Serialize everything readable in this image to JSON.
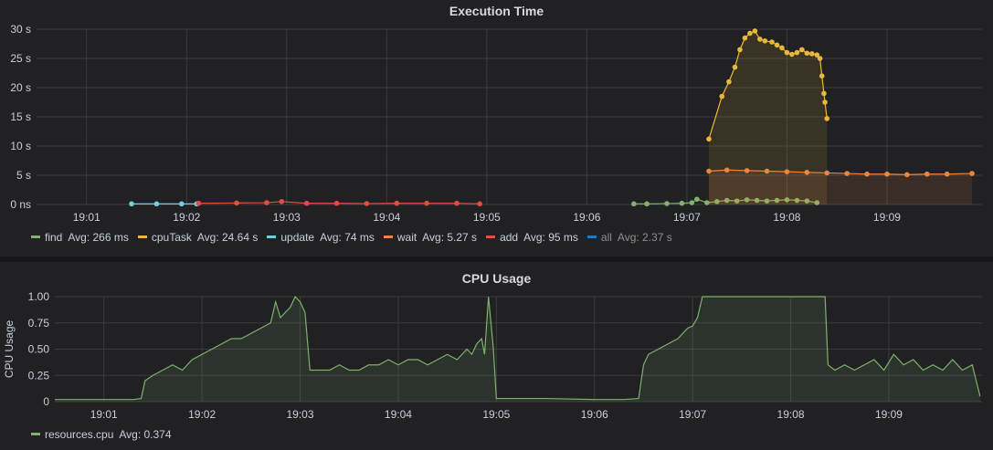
{
  "chart_data": [
    {
      "type": "line",
      "title": "Execution Time",
      "ylabel": "",
      "xlabel": "",
      "x_unit": "time (minute of day, 19:00 = 0)",
      "xlim": [
        0.5,
        9.95
      ],
      "ylim": [
        0,
        30
      ],
      "y_ticks": [
        {
          "value": 0,
          "label": "0 ns"
        },
        {
          "value": 5,
          "label": "5 s"
        },
        {
          "value": 10,
          "label": "10 s"
        },
        {
          "value": 15,
          "label": "15 s"
        },
        {
          "value": 20,
          "label": "20 s"
        },
        {
          "value": 25,
          "label": "25 s"
        },
        {
          "value": 30,
          "label": "30 s"
        }
      ],
      "x_ticks": [
        {
          "value": 1,
          "label": "19:01"
        },
        {
          "value": 2,
          "label": "19:02"
        },
        {
          "value": 3,
          "label": "19:03"
        },
        {
          "value": 4,
          "label": "19:04"
        },
        {
          "value": 5,
          "label": "19:05"
        },
        {
          "value": 6,
          "label": "19:06"
        },
        {
          "value": 7,
          "label": "19:07"
        },
        {
          "value": 8,
          "label": "19:08"
        },
        {
          "value": 9,
          "label": "19:09"
        }
      ],
      "grid": true,
      "legend_position": "bottom-left",
      "series": [
        {
          "name": "find",
          "avg_label": "Avg: 266 ms",
          "color": "#7eb26d",
          "fill": false,
          "x": [
            6.47,
            6.6,
            6.8,
            6.95,
            7.05,
            7.1,
            7.2,
            7.3,
            7.4,
            7.5,
            7.6,
            7.7,
            7.8,
            7.9,
            8.0,
            8.1,
            8.2,
            8.3
          ],
          "y": [
            0.1,
            0.1,
            0.15,
            0.2,
            0.3,
            0.9,
            0.3,
            0.5,
            0.7,
            0.6,
            0.8,
            0.7,
            0.6,
            0.7,
            0.8,
            0.7,
            0.6,
            0.3
          ]
        },
        {
          "name": "cpuTask",
          "avg_label": "Avg: 24.64 s",
          "color": "#eab839",
          "fill": true,
          "x": [
            7.22,
            7.35,
            7.42,
            7.48,
            7.53,
            7.58,
            7.63,
            7.68,
            7.73,
            7.78,
            7.85,
            7.9,
            7.95,
            8.0,
            8.05,
            8.1,
            8.15,
            8.2,
            8.25,
            8.3,
            8.33,
            8.35,
            8.37,
            8.38,
            8.4
          ],
          "y": [
            11.2,
            18.5,
            21.0,
            23.5,
            26.5,
            28.5,
            29.3,
            29.7,
            28.3,
            28.0,
            27.8,
            27.3,
            26.8,
            26.0,
            25.7,
            26.0,
            26.5,
            25.9,
            25.8,
            25.6,
            25.0,
            22.0,
            19.0,
            17.5,
            14.7
          ]
        },
        {
          "name": "update",
          "avg_label": "Avg: 74 ms",
          "color": "#6ed0e0",
          "fill": false,
          "x": [
            1.45,
            1.7,
            1.95,
            2.1
          ],
          "y": [
            0.1,
            0.1,
            0.1,
            0.1
          ]
        },
        {
          "name": "wait",
          "avg_label": "Avg: 5.27 s",
          "color": "#ef843c",
          "fill": true,
          "x": [
            7.22,
            7.4,
            7.6,
            7.8,
            8.0,
            8.2,
            8.4,
            8.6,
            8.8,
            9.0,
            9.2,
            9.4,
            9.6,
            9.85
          ],
          "y": [
            5.7,
            5.9,
            5.8,
            5.7,
            5.6,
            5.5,
            5.4,
            5.3,
            5.2,
            5.2,
            5.1,
            5.2,
            5.2,
            5.3
          ]
        },
        {
          "name": "add",
          "avg_label": "Avg: 95 ms",
          "color": "#e24d42",
          "fill": false,
          "x": [
            2.12,
            2.5,
            2.8,
            2.95,
            3.2,
            3.5,
            3.8,
            4.1,
            4.4,
            4.7,
            4.93
          ],
          "y": [
            0.2,
            0.25,
            0.3,
            0.5,
            0.2,
            0.2,
            0.15,
            0.2,
            0.2,
            0.2,
            0.1
          ]
        },
        {
          "name": "all",
          "avg_label": "Avg: 2.37 s",
          "color": "#1f78c1",
          "fill": false,
          "faded": true,
          "x": [],
          "y": []
        }
      ]
    },
    {
      "type": "line",
      "title": "CPU Usage",
      "ylabel": "CPU Usage",
      "xlabel": "",
      "xlim": [
        0.5,
        9.95
      ],
      "ylim": [
        0,
        1
      ],
      "y_ticks": [
        {
          "value": 0,
          "label": "0"
        },
        {
          "value": 0.25,
          "label": "0.25"
        },
        {
          "value": 0.5,
          "label": "0.50"
        },
        {
          "value": 0.75,
          "label": "0.75"
        },
        {
          "value": 1,
          "label": "1.00"
        }
      ],
      "x_ticks": [
        {
          "value": 1,
          "label": "19:01"
        },
        {
          "value": 2,
          "label": "19:02"
        },
        {
          "value": 3,
          "label": "19:03"
        },
        {
          "value": 4,
          "label": "19:04"
        },
        {
          "value": 5,
          "label": "19:05"
        },
        {
          "value": 6,
          "label": "19:06"
        },
        {
          "value": 7,
          "label": "19:07"
        },
        {
          "value": 8,
          "label": "19:08"
        },
        {
          "value": 9,
          "label": "19:09"
        }
      ],
      "grid": true,
      "legend_position": "bottom-left",
      "series": [
        {
          "name": "resources.cpu",
          "avg_label": "Avg: 0.374",
          "color": "#7eb26d",
          "fill": true,
          "x": [
            0.5,
            1.3,
            1.38,
            1.42,
            1.5,
            1.6,
            1.7,
            1.8,
            1.9,
            2.0,
            2.1,
            2.2,
            2.3,
            2.4,
            2.5,
            2.6,
            2.7,
            2.75,
            2.8,
            2.85,
            2.9,
            2.95,
            3.0,
            3.05,
            3.1,
            3.2,
            3.3,
            3.4,
            3.5,
            3.6,
            3.7,
            3.8,
            3.9,
            4.0,
            4.1,
            4.2,
            4.3,
            4.4,
            4.5,
            4.6,
            4.7,
            4.75,
            4.8,
            4.85,
            4.88,
            4.92,
            4.97,
            5.0,
            5.5,
            6.0,
            6.3,
            6.45,
            6.5,
            6.55,
            6.65,
            6.75,
            6.85,
            6.95,
            7.0,
            7.05,
            7.1,
            7.9,
            8.35,
            8.38,
            8.45,
            8.55,
            8.65,
            8.75,
            8.85,
            8.95,
            9.05,
            9.15,
            9.25,
            9.35,
            9.45,
            9.55,
            9.65,
            9.75,
            9.85,
            9.93
          ],
          "y": [
            0.02,
            0.02,
            0.03,
            0.2,
            0.25,
            0.3,
            0.35,
            0.3,
            0.4,
            0.45,
            0.5,
            0.55,
            0.6,
            0.6,
            0.65,
            0.7,
            0.75,
            0.95,
            0.8,
            0.85,
            0.9,
            1.0,
            0.95,
            0.85,
            0.3,
            0.3,
            0.3,
            0.35,
            0.3,
            0.3,
            0.35,
            0.35,
            0.4,
            0.35,
            0.4,
            0.4,
            0.35,
            0.4,
            0.45,
            0.4,
            0.5,
            0.45,
            0.55,
            0.6,
            0.45,
            1.0,
            0.5,
            0.03,
            0.03,
            0.02,
            0.02,
            0.03,
            0.35,
            0.45,
            0.5,
            0.55,
            0.6,
            0.7,
            0.72,
            0.8,
            1.0,
            1.0,
            1.0,
            0.35,
            0.3,
            0.35,
            0.3,
            0.35,
            0.4,
            0.3,
            0.45,
            0.35,
            0.4,
            0.3,
            0.35,
            0.3,
            0.4,
            0.3,
            0.35,
            0.05
          ]
        }
      ]
    }
  ]
}
